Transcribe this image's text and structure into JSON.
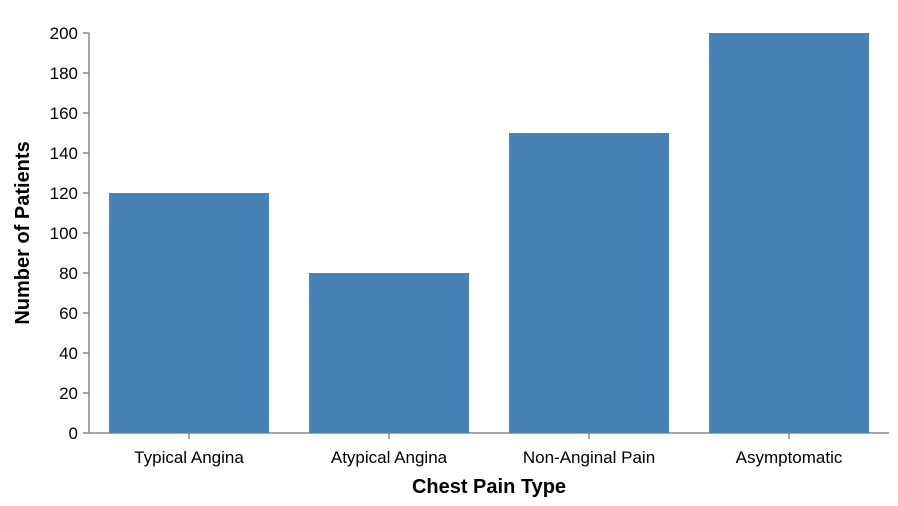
{
  "chart_data": {
    "type": "bar",
    "categories": [
      "Typical Angina",
      "Atypical Angina",
      "Non-Anginal Pain",
      "Asymptomatic"
    ],
    "values": [
      120,
      80,
      150,
      200
    ],
    "title": "",
    "xlabel": "Chest Pain Type",
    "ylabel": "Number of Patients",
    "ylim": [
      0,
      200
    ],
    "yticks": [
      0,
      20,
      40,
      60,
      80,
      100,
      120,
      140,
      160,
      180,
      200
    ],
    "grid": false,
    "bar_color": "#4682b4"
  }
}
